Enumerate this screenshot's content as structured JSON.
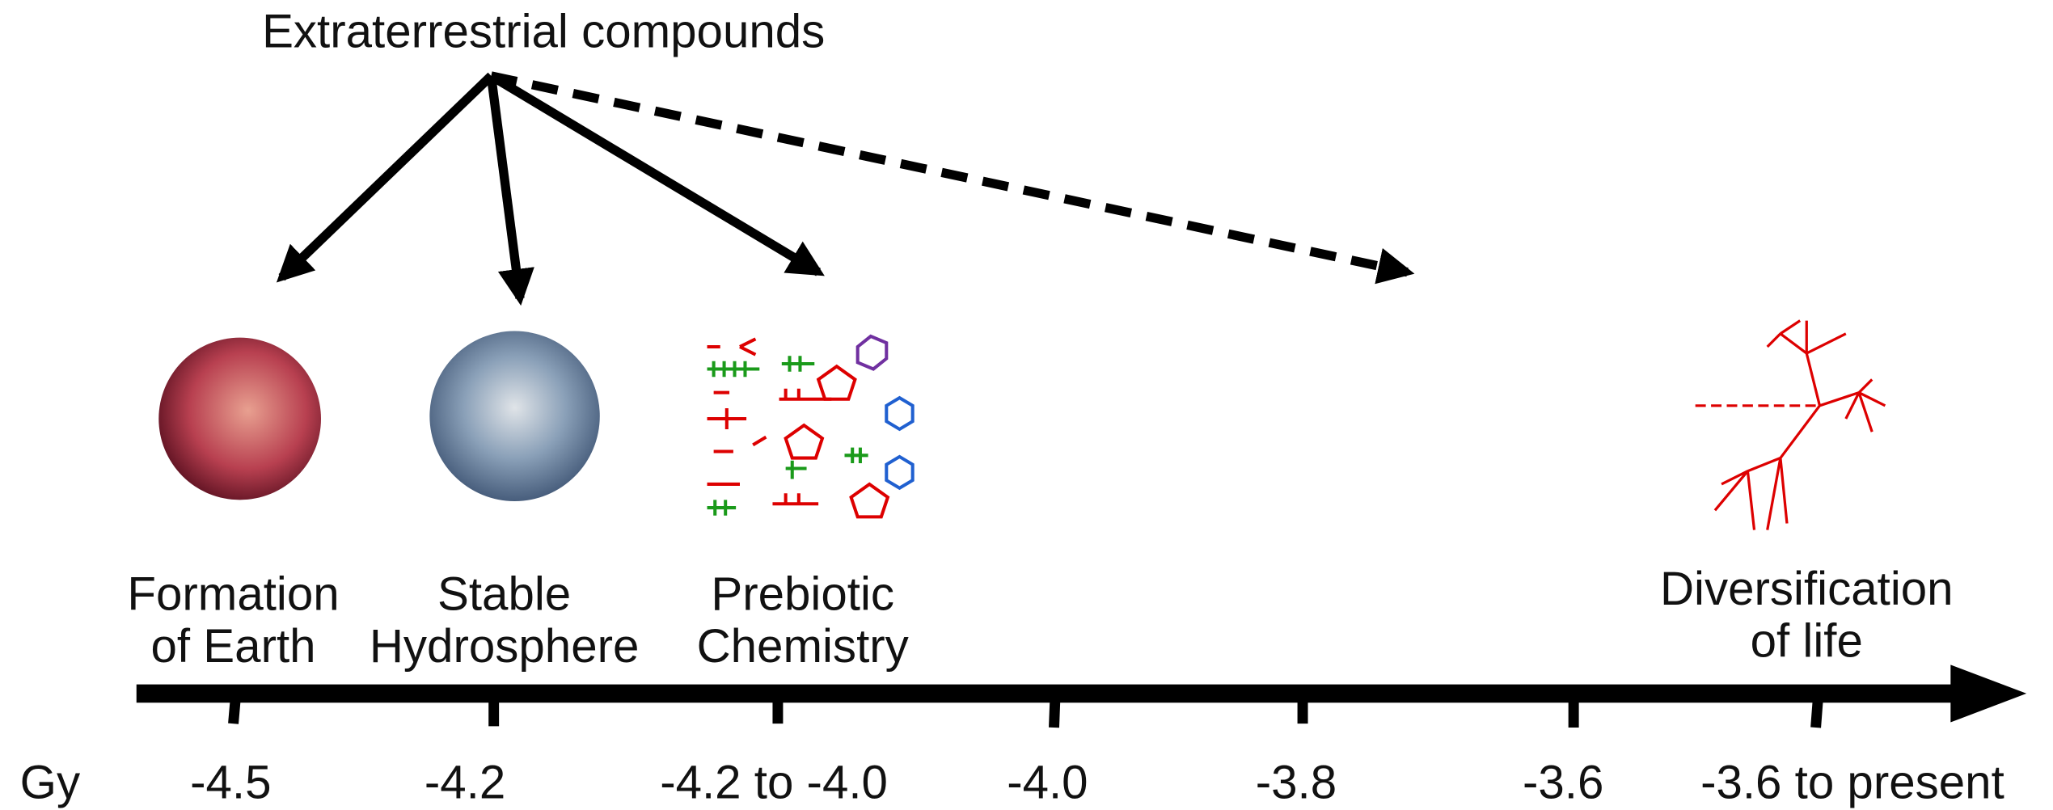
{
  "source": {
    "label": "Extraterrestrial compounds"
  },
  "stages": [
    {
      "lines": [
        "Formation",
        "of Earth"
      ]
    },
    {
      "lines": [
        "Stable",
        "Hydrosphere"
      ]
    },
    {
      "lines": [
        "Prebiotic",
        "Chemistry"
      ]
    },
    {
      "lines": [
        "Diversification",
        "of life"
      ]
    }
  ],
  "axis": {
    "unit": "Gy",
    "ticks": [
      "-4.5",
      "-4.2",
      "-4.2 to -4.0",
      "-4.0",
      "-3.8",
      "-3.6",
      "-3.6 to present"
    ]
  }
}
